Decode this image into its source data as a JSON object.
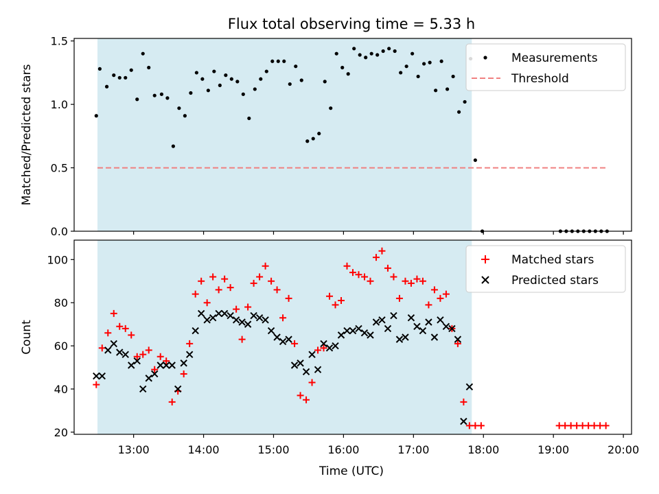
{
  "figure": {
    "title": "Flux total observing time = 5.33 h",
    "xlabel": "Time (UTC)"
  },
  "colors": {
    "shade": "#add8e6",
    "measurement": "#000000",
    "threshold": "#f08080",
    "matched": "#ff0000",
    "predicted": "#000000"
  },
  "chart_data": [
    {
      "type": "scatter",
      "ylabel": "Matched/Predicted stars",
      "xlim": [
        "12:09",
        "20:07"
      ],
      "ylim": [
        0,
        1.52
      ],
      "yticks": [
        0.0,
        0.5,
        1.0,
        1.5
      ],
      "ytick_labels": [
        "0.0",
        "0.5",
        "1.0",
        "1.5"
      ],
      "xticks": [
        "13:00",
        "14:00",
        "15:00",
        "16:00",
        "17:00",
        "18:00",
        "19:00",
        "20:00"
      ],
      "shaded_interval": [
        "12:29",
        "17:50"
      ],
      "legend": {
        "position": "upper right",
        "entries": [
          "Measurements",
          "Threshold"
        ]
      },
      "threshold": {
        "name": "Threshold",
        "y": 0.5,
        "x_range": [
          "12:29",
          "19:47"
        ]
      },
      "series": [
        {
          "name": "Measurements",
          "marker": "dot",
          "points": [
            [
              "12:28",
              0.91
            ],
            [
              "12:31",
              1.28
            ],
            [
              "12:37",
              1.14
            ],
            [
              "12:43",
              1.23
            ],
            [
              "12:48",
              1.21
            ],
            [
              "12:53",
              1.21
            ],
            [
              "12:58",
              1.27
            ],
            [
              "13:03",
              1.04
            ],
            [
              "13:08",
              1.4
            ],
            [
              "13:13",
              1.29
            ],
            [
              "13:18",
              1.07
            ],
            [
              "13:24",
              1.08
            ],
            [
              "13:29",
              1.05
            ],
            [
              "13:34",
              0.67
            ],
            [
              "13:39",
              0.97
            ],
            [
              "13:44",
              0.91
            ],
            [
              "13:49",
              1.09
            ],
            [
              "13:54",
              1.25
            ],
            [
              "13:59",
              1.2
            ],
            [
              "14:04",
              1.11
            ],
            [
              "14:09",
              1.26
            ],
            [
              "14:14",
              1.15
            ],
            [
              "14:19",
              1.23
            ],
            [
              "14:24",
              1.2
            ],
            [
              "14:29",
              1.18
            ],
            [
              "14:34",
              1.08
            ],
            [
              "14:39",
              0.89
            ],
            [
              "14:44",
              1.12
            ],
            [
              "14:49",
              1.2
            ],
            [
              "14:54",
              1.26
            ],
            [
              "14:59",
              1.34
            ],
            [
              "15:04",
              1.34
            ],
            [
              "15:09",
              1.34
            ],
            [
              "15:14",
              1.16
            ],
            [
              "15:19",
              1.3
            ],
            [
              "15:24",
              1.19
            ],
            [
              "15:29",
              0.71
            ],
            [
              "15:34",
              0.73
            ],
            [
              "15:39",
              0.77
            ],
            [
              "15:44",
              1.18
            ],
            [
              "15:49",
              0.97
            ],
            [
              "15:54",
              1.4
            ],
            [
              "15:59",
              1.29
            ],
            [
              "16:04",
              1.24
            ],
            [
              "16:09",
              1.44
            ],
            [
              "16:14",
              1.39
            ],
            [
              "16:19",
              1.37
            ],
            [
              "16:24",
              1.4
            ],
            [
              "16:29",
              1.39
            ],
            [
              "16:34",
              1.42
            ],
            [
              "16:39",
              1.44
            ],
            [
              "16:44",
              1.42
            ],
            [
              "16:49",
              1.25
            ],
            [
              "16:54",
              1.3
            ],
            [
              "16:59",
              1.4
            ],
            [
              "17:04",
              1.22
            ],
            [
              "17:09",
              1.32
            ],
            [
              "17:14",
              1.33
            ],
            [
              "17:19",
              1.11
            ],
            [
              "17:24",
              1.34
            ],
            [
              "17:29",
              1.12
            ],
            [
              "17:34",
              1.22
            ],
            [
              "17:39",
              0.94
            ],
            [
              "17:44",
              1.02
            ],
            [
              "17:49",
              1.36
            ],
            [
              "17:53",
              0.56
            ],
            [
              "17:59",
              0.0
            ],
            [
              "19:06",
              0.0
            ],
            [
              "19:11",
              0.0
            ],
            [
              "19:16",
              0.0
            ],
            [
              "19:21",
              0.0
            ],
            [
              "19:26",
              0.0
            ],
            [
              "19:31",
              0.0
            ],
            [
              "19:36",
              0.0
            ],
            [
              "19:41",
              0.0
            ],
            [
              "19:46",
              0.0
            ]
          ]
        }
      ]
    },
    {
      "type": "scatter",
      "ylabel": "Count",
      "xlabel": "Time (UTC)",
      "xlim": [
        "12:09",
        "20:07"
      ],
      "ylim": [
        19,
        109
      ],
      "yticks": [
        20,
        40,
        60,
        80,
        100
      ],
      "ytick_labels": [
        "20",
        "40",
        "60",
        "80",
        "100"
      ],
      "xticks": [
        "13:00",
        "14:00",
        "15:00",
        "16:00",
        "17:00",
        "18:00",
        "19:00",
        "20:00"
      ],
      "xtick_labels": [
        "13:00",
        "14:00",
        "15:00",
        "16:00",
        "17:00",
        "18:00",
        "19:00",
        "20:00"
      ],
      "shaded_interval": [
        "12:29",
        "17:50"
      ],
      "legend": {
        "position": "upper right",
        "entries": [
          "Matched stars",
          "Predicted stars"
        ]
      },
      "series": [
        {
          "name": "Matched stars",
          "marker": "plus",
          "points": [
            [
              "12:28",
              42
            ],
            [
              "12:33",
              59
            ],
            [
              "12:38",
              66
            ],
            [
              "12:43",
              75
            ],
            [
              "12:48",
              69
            ],
            [
              "12:53",
              68
            ],
            [
              "12:58",
              65
            ],
            [
              "13:03",
              55
            ],
            [
              "13:08",
              56
            ],
            [
              "13:13",
              58
            ],
            [
              "13:18",
              49
            ],
            [
              "13:23",
              55
            ],
            [
              "13:28",
              53
            ],
            [
              "13:33",
              34
            ],
            [
              "13:38",
              39
            ],
            [
              "13:43",
              47
            ],
            [
              "13:48",
              61
            ],
            [
              "13:53",
              84
            ],
            [
              "13:58",
              90
            ],
            [
              "14:03",
              80
            ],
            [
              "14:08",
              92
            ],
            [
              "14:13",
              86
            ],
            [
              "14:18",
              91
            ],
            [
              "14:23",
              87
            ],
            [
              "14:28",
              77
            ],
            [
              "14:33",
              63
            ],
            [
              "14:38",
              78
            ],
            [
              "14:43",
              89
            ],
            [
              "14:48",
              92
            ],
            [
              "14:53",
              97
            ],
            [
              "14:58",
              90
            ],
            [
              "15:03",
              86
            ],
            [
              "15:08",
              73
            ],
            [
              "15:13",
              82
            ],
            [
              "15:18",
              61
            ],
            [
              "15:23",
              37
            ],
            [
              "15:28",
              35
            ],
            [
              "15:33",
              43
            ],
            [
              "15:38",
              58
            ],
            [
              "15:43",
              59
            ],
            [
              "15:48",
              83
            ],
            [
              "15:53",
              79
            ],
            [
              "15:58",
              81
            ],
            [
              "16:03",
              97
            ],
            [
              "16:08",
              94
            ],
            [
              "16:13",
              93
            ],
            [
              "16:18",
              92
            ],
            [
              "16:23",
              90
            ],
            [
              "16:28",
              101
            ],
            [
              "16:33",
              104
            ],
            [
              "16:38",
              96
            ],
            [
              "16:43",
              92
            ],
            [
              "16:48",
              82
            ],
            [
              "16:53",
              90
            ],
            [
              "16:58",
              89
            ],
            [
              "17:03",
              91
            ],
            [
              "17:08",
              90
            ],
            [
              "17:13",
              79
            ],
            [
              "17:18",
              86
            ],
            [
              "17:23",
              82
            ],
            [
              "17:28",
              84
            ],
            [
              "17:33",
              68
            ],
            [
              "17:38",
              61
            ],
            [
              "17:43",
              34
            ],
            [
              "17:48",
              23
            ],
            [
              "17:53",
              23
            ],
            [
              "17:58",
              23
            ],
            [
              "19:05",
              23
            ],
            [
              "19:10",
              23
            ],
            [
              "19:15",
              23
            ],
            [
              "19:20",
              23
            ],
            [
              "19:25",
              23
            ],
            [
              "19:30",
              23
            ],
            [
              "19:35",
              23
            ],
            [
              "19:40",
              23
            ],
            [
              "19:45",
              23
            ]
          ]
        },
        {
          "name": "Predicted stars",
          "marker": "x",
          "points": [
            [
              "12:28",
              46
            ],
            [
              "12:33",
              46
            ],
            [
              "12:38",
              58
            ],
            [
              "12:43",
              61
            ],
            [
              "12:48",
              57
            ],
            [
              "12:53",
              56
            ],
            [
              "12:58",
              51
            ],
            [
              "13:03",
              53
            ],
            [
              "13:08",
              40
            ],
            [
              "13:13",
              45
            ],
            [
              "13:18",
              47
            ],
            [
              "13:23",
              51
            ],
            [
              "13:28",
              51
            ],
            [
              "13:33",
              51
            ],
            [
              "13:38",
              40
            ],
            [
              "13:43",
              52
            ],
            [
              "13:48",
              56
            ],
            [
              "13:53",
              67
            ],
            [
              "13:58",
              75
            ],
            [
              "14:03",
              72
            ],
            [
              "14:08",
              73
            ],
            [
              "14:13",
              75
            ],
            [
              "14:18",
              75
            ],
            [
              "14:23",
              74
            ],
            [
              "14:28",
              72
            ],
            [
              "14:33",
              71
            ],
            [
              "14:38",
              70
            ],
            [
              "14:43",
              74
            ],
            [
              "14:48",
              73
            ],
            [
              "14:53",
              72
            ],
            [
              "14:58",
              67
            ],
            [
              "15:03",
              64
            ],
            [
              "15:08",
              62
            ],
            [
              "15:13",
              63
            ],
            [
              "15:18",
              51
            ],
            [
              "15:23",
              52
            ],
            [
              "15:28",
              48
            ],
            [
              "15:33",
              56
            ],
            [
              "15:38",
              49
            ],
            [
              "15:43",
              61
            ],
            [
              "15:48",
              59
            ],
            [
              "15:53",
              60
            ],
            [
              "15:58",
              65
            ],
            [
              "16:03",
              67
            ],
            [
              "16:08",
              67
            ],
            [
              "16:13",
              68
            ],
            [
              "16:18",
              66
            ],
            [
              "16:23",
              65
            ],
            [
              "16:28",
              71
            ],
            [
              "16:33",
              72
            ],
            [
              "16:38",
              68
            ],
            [
              "16:43",
              74
            ],
            [
              "16:48",
              63
            ],
            [
              "16:53",
              64
            ],
            [
              "16:58",
              73
            ],
            [
              "17:03",
              69
            ],
            [
              "17:08",
              67
            ],
            [
              "17:13",
              71
            ],
            [
              "17:18",
              64
            ],
            [
              "17:23",
              72
            ],
            [
              "17:28",
              69
            ],
            [
              "17:33",
              68
            ],
            [
              "17:38",
              63
            ],
            [
              "17:43",
              25
            ],
            [
              "17:48",
              41
            ]
          ]
        }
      ]
    }
  ]
}
